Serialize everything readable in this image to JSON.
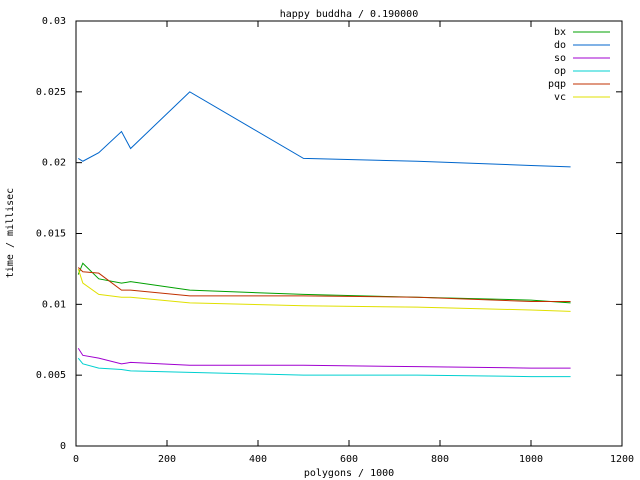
{
  "chart_data": {
    "type": "line",
    "title": "happy buddha / 0.190000",
    "x_label": "polygons / 1000",
    "y_label": "time / millisec",
    "x": [
      5,
      15,
      50,
      100,
      120,
      250,
      500,
      750,
      1000,
      1087
    ],
    "series": [
      {
        "name": "bx",
        "color": "#00a000",
        "values": [
          0.0121,
          0.0129,
          0.0118,
          0.0115,
          0.0116,
          0.011,
          0.0107,
          0.0105,
          0.0103,
          0.0101
        ]
      },
      {
        "name": "do",
        "color": "#0066cc",
        "values": [
          0.0203,
          0.0201,
          0.0207,
          0.0222,
          0.021,
          0.025,
          0.0203,
          0.0201,
          0.0198,
          0.0197
        ]
      },
      {
        "name": "so",
        "color": "#a000d0",
        "values": [
          0.0069,
          0.0064,
          0.0062,
          0.0058,
          0.0059,
          0.0057,
          0.0057,
          0.0056,
          0.0055,
          0.0055
        ]
      },
      {
        "name": "op",
        "color": "#00d0d0",
        "values": [
          0.0062,
          0.0058,
          0.0055,
          0.0054,
          0.0053,
          0.0052,
          0.005,
          0.005,
          0.0049,
          0.0049
        ]
      },
      {
        "name": "pqp",
        "color": "#c03000",
        "values": [
          0.0126,
          0.0123,
          0.0122,
          0.011,
          0.011,
          0.0106,
          0.0106,
          0.0105,
          0.0102,
          0.0102
        ]
      },
      {
        "name": "vc",
        "color": "#e0e000",
        "values": [
          0.0125,
          0.0115,
          0.0107,
          0.0105,
          0.0105,
          0.0101,
          0.0099,
          0.0098,
          0.0096,
          0.0095
        ]
      }
    ],
    "xlim": [
      0,
      1200
    ],
    "xticks": [
      0,
      200,
      400,
      600,
      800,
      1000,
      1200
    ],
    "ylim": [
      0,
      0.03
    ],
    "yticks": [
      0,
      0.005,
      0.01,
      0.015,
      0.02,
      0.025,
      0.03
    ],
    "legend": "top-right"
  }
}
